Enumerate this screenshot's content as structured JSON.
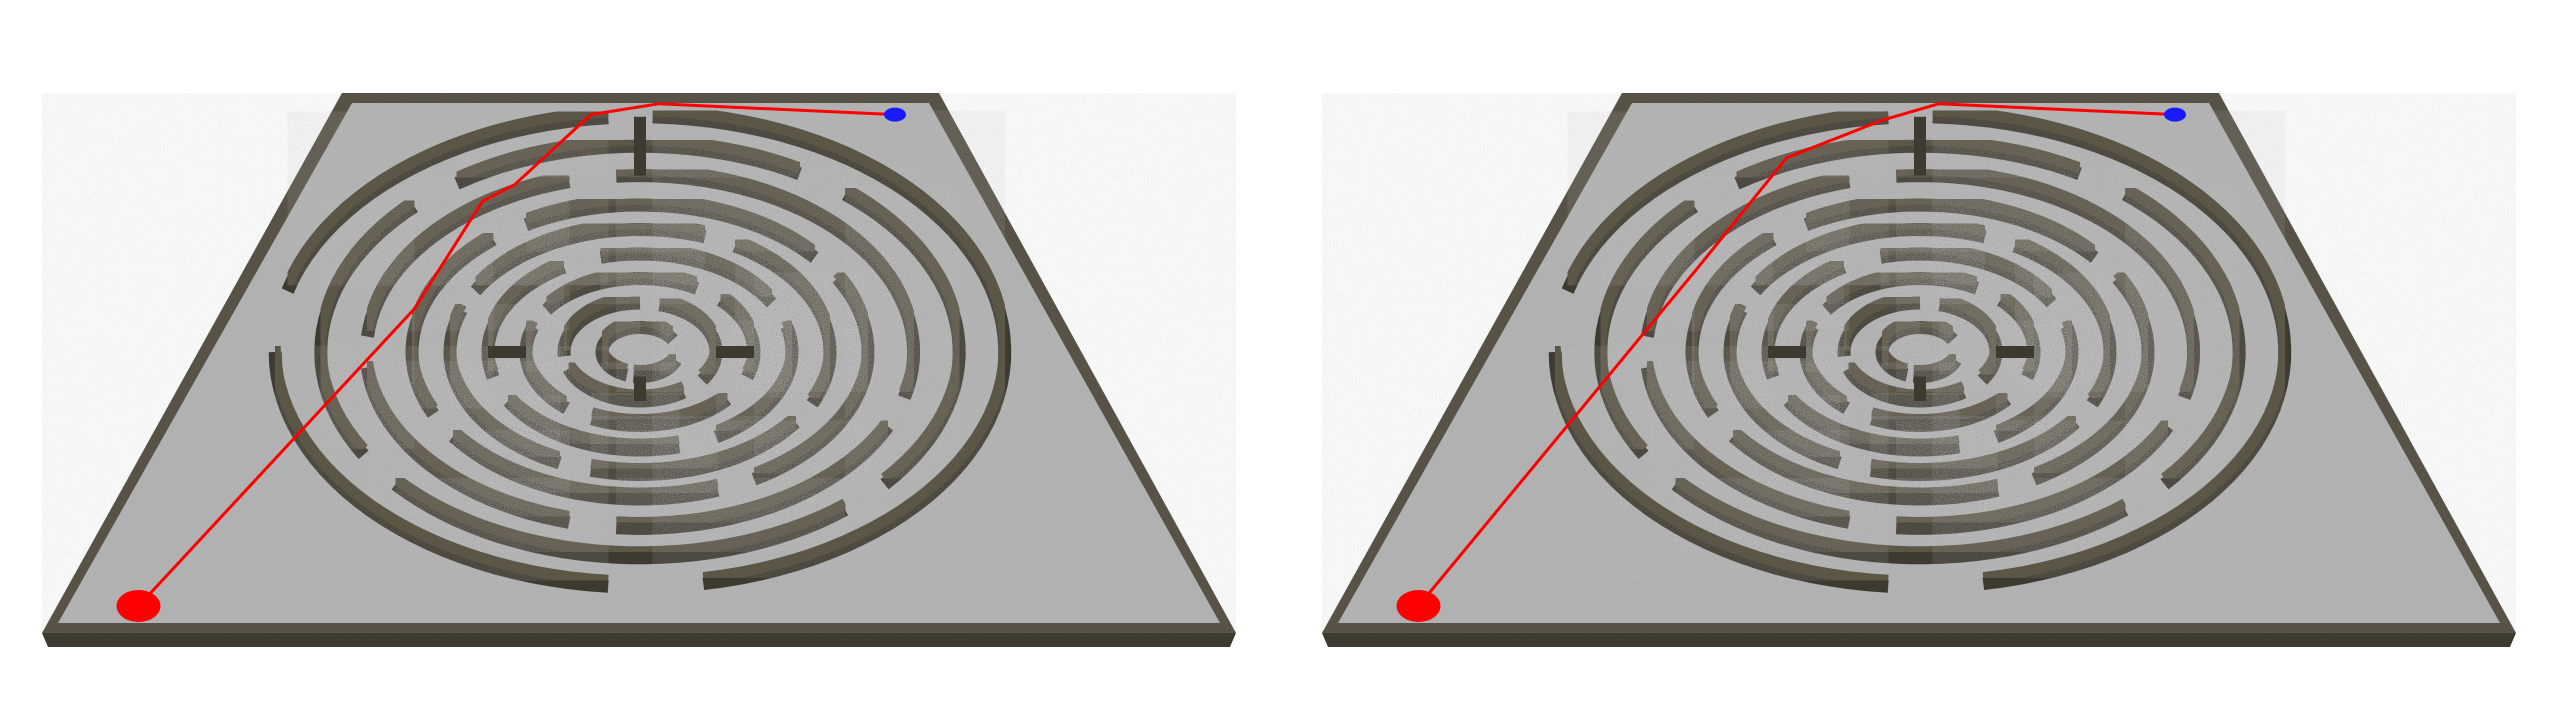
{
  "panels": [
    {
      "id": "left",
      "title": "",
      "path_label": "",
      "rings": [
        {
          "r": 0.1,
          "gaps": [
            [
              330,
              20
            ],
            [
              100,
              110
            ]
          ]
        },
        {
          "r": 0.2,
          "gaps": [
            [
              35,
              55
            ],
            [
              160,
              175
            ],
            [
              270,
              285
            ]
          ]
        },
        {
          "r": 0.3,
          "gaps": [
            [
              20,
              40
            ],
            [
              115,
              130
            ],
            [
              200,
              215
            ],
            [
              300,
              315
            ]
          ]
        },
        {
          "r": 0.4,
          "gaps": [
            [
              60,
              75
            ],
            [
              150,
              165
            ],
            [
              240,
              255
            ],
            [
              330,
              345
            ]
          ]
        },
        {
          "r": 0.5,
          "gaps": [
            [
              25,
              35
            ],
            [
              105,
              115
            ],
            [
              200,
              210
            ],
            [
              290,
              300
            ]
          ]
        },
        {
          "r": 0.6,
          "gaps": [
            [
              60,
              70
            ],
            [
              145,
              155
            ],
            [
              230,
              240
            ],
            [
              320,
              330
            ]
          ]
        },
        {
          "r": 0.72,
          "gaps": [
            [
              15,
              25
            ],
            [
              95,
              105
            ],
            [
              175,
              185
            ],
            [
              255,
              265
            ]
          ]
        },
        {
          "r": 0.84,
          "gaps": [
            [
              40,
              50
            ],
            [
              140,
              150
            ],
            [
              225,
              235
            ],
            [
              300,
              310
            ]
          ]
        },
        {
          "r": 0.96,
          "gaps": [
            [
              80,
              95
            ],
            [
              180,
              195
            ],
            [
              265,
              272
            ]
          ]
        }
      ],
      "spokes": [
        {
          "angle": 270,
          "from": 0.72,
          "to": 0.96
        },
        {
          "angle": 90,
          "from": 0.1,
          "to": 0.2
        },
        {
          "angle": 0,
          "from": 0.2,
          "to": 0.3
        },
        {
          "angle": 180,
          "from": 0.3,
          "to": 0.4
        }
      ],
      "start": {
        "u": 0.07,
        "v": 0.95
      },
      "goal": {
        "u": 0.91,
        "v": 0.04
      },
      "path": [
        [
          0.07,
          0.95
        ],
        [
          0.23,
          0.4
        ],
        [
          0.28,
          0.2
        ],
        [
          0.32,
          0.17
        ],
        [
          0.42,
          0.04
        ],
        [
          0.53,
          0.02
        ],
        [
          0.91,
          0.04
        ]
      ]
    },
    {
      "id": "right",
      "title": "",
      "path_label": "",
      "rings": [
        {
          "r": 0.1,
          "gaps": [
            [
              330,
              20
            ],
            [
              100,
              110
            ]
          ]
        },
        {
          "r": 0.2,
          "gaps": [
            [
              35,
              55
            ],
            [
              160,
              175
            ],
            [
              270,
              285
            ]
          ]
        },
        {
          "r": 0.3,
          "gaps": [
            [
              20,
              40
            ],
            [
              115,
              130
            ],
            [
              200,
              215
            ],
            [
              300,
              315
            ]
          ]
        },
        {
          "r": 0.4,
          "gaps": [
            [
              60,
              75
            ],
            [
              150,
              165
            ],
            [
              240,
              255
            ],
            [
              330,
              345
            ]
          ]
        },
        {
          "r": 0.5,
          "gaps": [
            [
              25,
              35
            ],
            [
              105,
              115
            ],
            [
              200,
              210
            ],
            [
              290,
              300
            ]
          ]
        },
        {
          "r": 0.6,
          "gaps": [
            [
              60,
              70
            ],
            [
              145,
              155
            ],
            [
              230,
              240
            ],
            [
              320,
              330
            ]
          ]
        },
        {
          "r": 0.72,
          "gaps": [
            [
              15,
              25
            ],
            [
              95,
              105
            ],
            [
              175,
              185
            ],
            [
              255,
              265
            ]
          ]
        },
        {
          "r": 0.84,
          "gaps": [
            [
              40,
              50
            ],
            [
              140,
              150
            ],
            [
              225,
              235
            ],
            [
              300,
              310
            ]
          ]
        },
        {
          "r": 0.96,
          "gaps": [
            [
              80,
              95
            ],
            [
              180,
              195
            ],
            [
              265,
              272
            ]
          ]
        }
      ],
      "spokes": [
        {
          "angle": 270,
          "from": 0.72,
          "to": 0.96
        },
        {
          "angle": 90,
          "from": 0.1,
          "to": 0.2
        },
        {
          "angle": 0,
          "from": 0.2,
          "to": 0.3
        },
        {
          "angle": 180,
          "from": 0.3,
          "to": 0.4
        }
      ],
      "start": {
        "u": 0.07,
        "v": 0.95
      },
      "goal": {
        "u": 0.91,
        "v": 0.04
      },
      "path": [
        [
          0.07,
          0.95
        ],
        [
          0.22,
          0.32
        ],
        [
          0.3,
          0.12
        ],
        [
          0.44,
          0.05
        ],
        [
          0.53,
          0.02
        ],
        [
          0.91,
          0.04
        ]
      ]
    }
  ],
  "colors": {
    "board_floor": "#b1b1b1",
    "board_border": "#5b5548",
    "wall_top": "#5f5949",
    "wall_side": "#3f3a30",
    "path": "#ff0000",
    "start_marker": "#ff0000",
    "goal_marker": "#1a1aff"
  },
  "icons": {
    "start_marker": "start-disc-icon",
    "goal_marker": "goal-disc-icon"
  }
}
